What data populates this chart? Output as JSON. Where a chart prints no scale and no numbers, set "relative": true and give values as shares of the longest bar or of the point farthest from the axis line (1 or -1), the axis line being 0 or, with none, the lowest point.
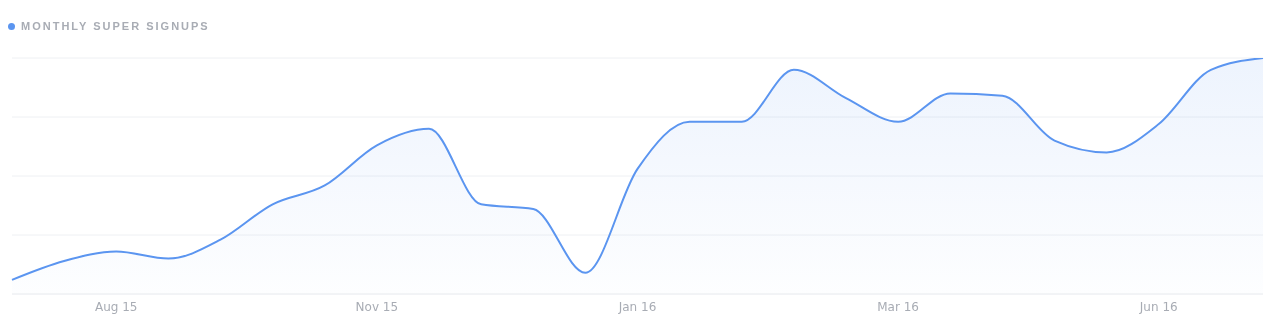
{
  "chart_data": {
    "type": "area",
    "relative": true,
    "legend": "top left",
    "grid": "y",
    "categories": [
      null,
      null,
      "Aug 15",
      null,
      null,
      null,
      null,
      "Nov 15",
      null,
      null,
      null,
      null,
      "Jan 16",
      null,
      null,
      null,
      null,
      "Mar 16",
      null,
      null,
      null,
      null,
      "Jun 16",
      null,
      null
    ],
    "series": [
      {
        "name": "MONTHLY SUPER SIGNUPS",
        "color": "#5b95f0",
        "values": [
          0.06,
          0.14,
          0.18,
          0.15,
          0.23,
          0.38,
          0.46,
          0.63,
          0.7,
          0.38,
          0.36,
          0.09,
          0.53,
          0.73,
          0.73,
          0.95,
          0.83,
          0.73,
          0.85,
          0.84,
          0.65,
          0.6,
          0.72,
          0.95,
          1
        ]
      }
    ]
  }
}
